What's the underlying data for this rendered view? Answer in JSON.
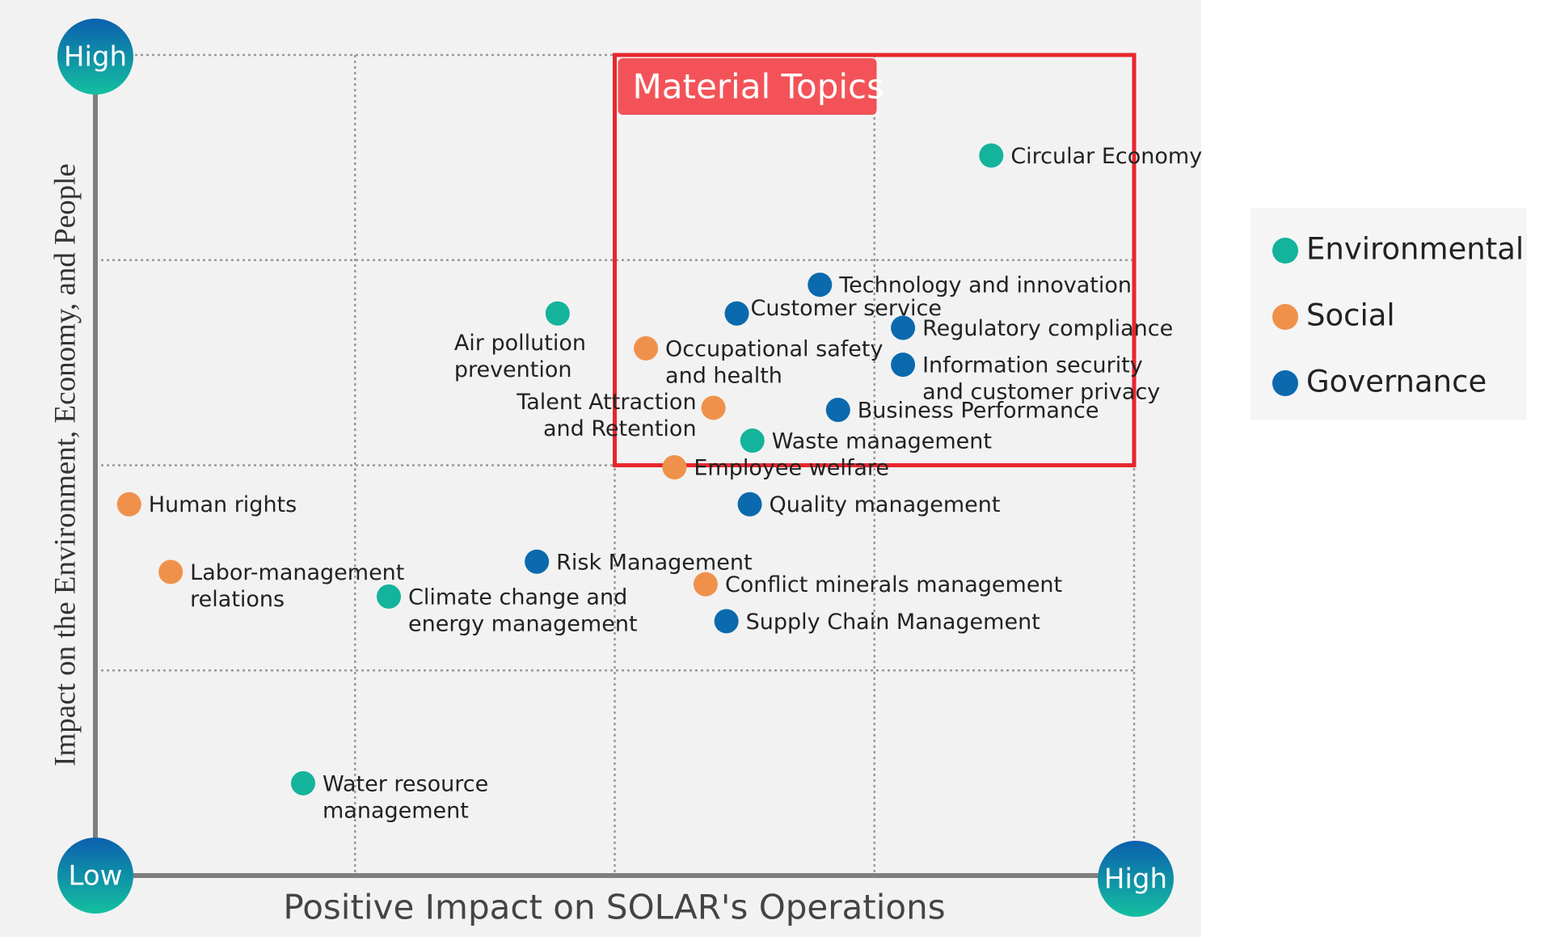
{
  "chart_data": {
    "type": "scatter",
    "x_label": "Positive Impact on SOLAR's Operations",
    "y_label": "Impact on the Environment, Economy, and People",
    "corner_labels": {
      "y_high": "High",
      "origin": "Low",
      "x_high": "High"
    },
    "xlim": [
      0,
      4
    ],
    "ylim": [
      0,
      4
    ],
    "xgrid": [
      1,
      2,
      3,
      4
    ],
    "ygrid": [
      1,
      2,
      3,
      4
    ],
    "highlight": {
      "label": "Material Topics",
      "xlim": [
        2,
        4
      ],
      "ylim": [
        2,
        4
      ],
      "color": "#e8262d"
    },
    "series": [
      {
        "name": "Environmental",
        "color": "#14b39c",
        "points": [
          {
            "label": [
              "Circular Economy"
            ],
            "x": 3.45,
            "y": 3.51
          },
          {
            "label": [
              "Air pollution",
              "prevention"
            ],
            "x": 1.78,
            "y": 2.74
          },
          {
            "label": [
              "Waste management"
            ],
            "x": 2.53,
            "y": 2.12
          },
          {
            "label": [
              "Climate change and",
              "energy management"
            ],
            "x": 1.13,
            "y": 1.36
          },
          {
            "label": [
              "Water resource",
              "management"
            ],
            "x": 0.8,
            "y": 0.45
          }
        ]
      },
      {
        "name": "Social",
        "color": "#f0914b",
        "points": [
          {
            "label": [
              "Occupational safety",
              "and health"
            ],
            "x": 2.12,
            "y": 2.57
          },
          {
            "label": [
              "Talent Attraction",
              "and Retention"
            ],
            "x": 2.38,
            "y": 2.28
          },
          {
            "label": [
              "Employee welfare"
            ],
            "x": 2.23,
            "y": 1.99
          },
          {
            "label": [
              "Human rights"
            ],
            "x": 0.13,
            "y": 1.81
          },
          {
            "label": [
              "Labor-management",
              "relations"
            ],
            "x": 0.29,
            "y": 1.48
          },
          {
            "label": [
              "Conflict minerals management"
            ],
            "x": 2.35,
            "y": 1.42
          }
        ]
      },
      {
        "name": "Governance",
        "color": "#0a6aad",
        "points": [
          {
            "label": [
              "Technology and innovation"
            ],
            "x": 2.79,
            "y": 2.88
          },
          {
            "label": [
              "Customer service"
            ],
            "x": 2.47,
            "y": 2.74
          },
          {
            "label": [
              "Regulatory compliance"
            ],
            "x": 3.11,
            "y": 2.67
          },
          {
            "label": [
              "Information security",
              "and customer privacy"
            ],
            "x": 3.11,
            "y": 2.49
          },
          {
            "label": [
              "Business Performance"
            ],
            "x": 2.86,
            "y": 2.27
          },
          {
            "label": [
              "Quality management"
            ],
            "x": 2.52,
            "y": 1.81
          },
          {
            "label": [
              "Risk Management"
            ],
            "x": 1.7,
            "y": 1.53
          },
          {
            "label": [
              "Supply Chain Management"
            ],
            "x": 2.43,
            "y": 1.24
          }
        ]
      }
    ]
  }
}
